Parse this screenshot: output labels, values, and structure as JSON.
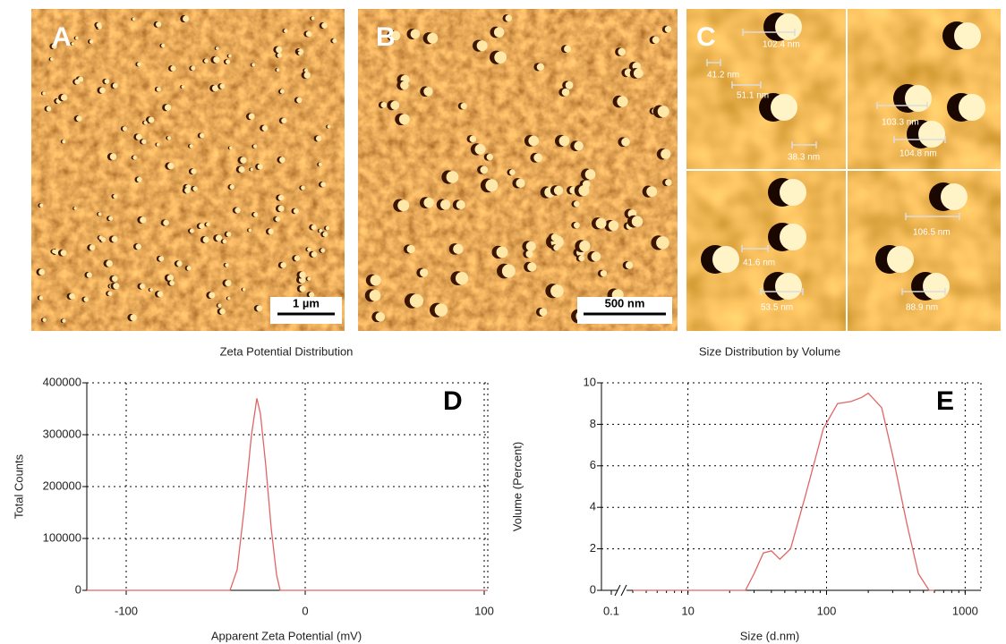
{
  "panels": [
    {
      "label": "A",
      "scale_bar": "1 µm"
    },
    {
      "label": "B",
      "scale_bar": "500 nm"
    },
    {
      "label": "C",
      "measurements": [
        "102.4 nm",
        "41.2 nm",
        "51.1 nm",
        "38.3 nm",
        "103.3 nm",
        "104.8 nm",
        "41.6 nm",
        "53.5 nm",
        "106.5 nm",
        "88.9 nm"
      ]
    }
  ],
  "chart_data": [
    {
      "type": "line",
      "title": "Zeta Potential Distribution",
      "panel": "D",
      "x_label": "Apparent Zeta Potential (mV)",
      "y_label": "Total Counts",
      "x": [
        -122,
        -42,
        -38,
        -34,
        -30,
        -27,
        -25,
        -22,
        -19,
        -16,
        -14,
        102
      ],
      "values": [
        0,
        0,
        40000,
        160000,
        300000,
        370000,
        340000,
        240000,
        120000,
        30000,
        0,
        0
      ],
      "color": "#e06666",
      "xlim": [
        -122,
        102
      ],
      "xticks": [
        -100,
        0,
        100
      ],
      "ylim": [
        0,
        400000
      ],
      "yticks": [
        0,
        100000,
        200000,
        300000,
        400000
      ],
      "grid": true
    },
    {
      "type": "line",
      "title": "Size Distribution by Volume",
      "panel": "E",
      "x_label": "Size (d.nm)",
      "y_label": "Volume (Percent)",
      "x": [
        4,
        26,
        30,
        35,
        40,
        46,
        55,
        70,
        95,
        120,
        150,
        180,
        200,
        250,
        300,
        380,
        460,
        550,
        600
      ],
      "values": [
        0,
        0,
        0.8,
        1.8,
        1.9,
        1.5,
        2.0,
        4.5,
        7.8,
        9.0,
        9.1,
        9.3,
        9.5,
        8.8,
        6.5,
        3.2,
        0.8,
        0,
        0
      ],
      "color": "#e06666",
      "xlim": [
        0.1,
        1300
      ],
      "xbreak": [
        0.1,
        4
      ],
      "log_x": true,
      "xticks": [
        0.1,
        10,
        100,
        1000
      ],
      "ylim": [
        0,
        10
      ],
      "yticks": [
        0,
        2,
        4,
        6,
        8,
        10
      ],
      "grid": true
    }
  ]
}
